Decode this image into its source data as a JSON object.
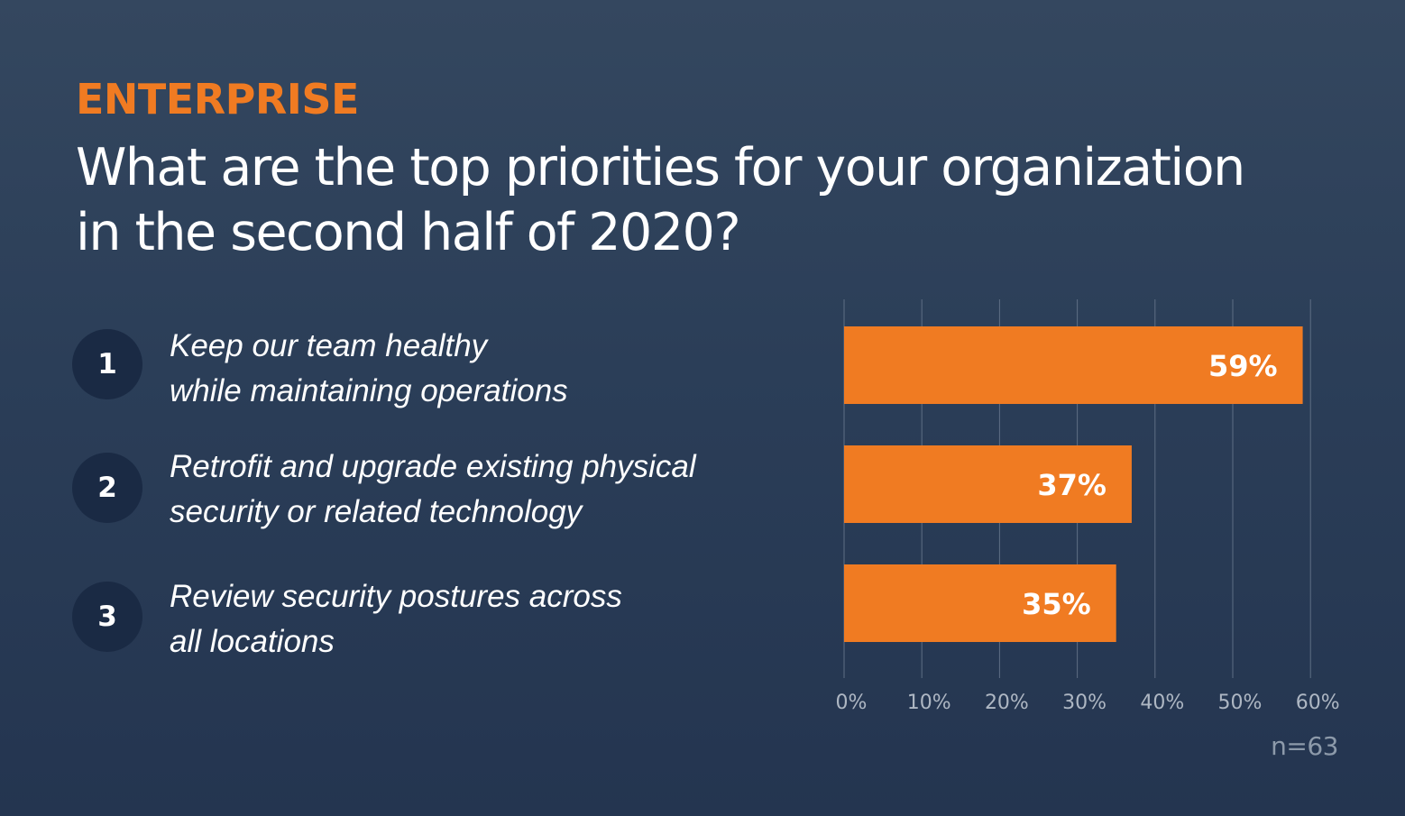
{
  "header": {
    "category": "ENTERPRISE",
    "question": "What are the top priorities for your organization in the second half of 2020?"
  },
  "priorities": [
    {
      "rank": "1",
      "text": "Keep our team healthy\nwhile maintaining operations"
    },
    {
      "rank": "2",
      "text": "Retrofit and upgrade existing physical\nsecurity or related technology"
    },
    {
      "rank": "3",
      "text": "Review security postures across\nall locations"
    }
  ],
  "sample_size": "n=63",
  "colors": {
    "bar": "#f07b22",
    "bar_label": "#ffffff",
    "grid": "#5e6e84",
    "tick_label": "#aeb7c3",
    "rank_circle": "#1a2a44"
  },
  "chart_data": {
    "type": "bar",
    "orientation": "horizontal",
    "categories": [
      "1",
      "2",
      "3"
    ],
    "values": [
      59,
      37,
      35
    ],
    "value_labels": [
      "59%",
      "37%",
      "35%"
    ],
    "xlim": [
      0,
      60
    ],
    "x_ticks": [
      0,
      10,
      20,
      30,
      40,
      50,
      60
    ],
    "x_tick_labels": [
      "0%",
      "10%",
      "20%",
      "30%",
      "40%",
      "50%",
      "60%"
    ],
    "grid": true,
    "legend": "none"
  }
}
